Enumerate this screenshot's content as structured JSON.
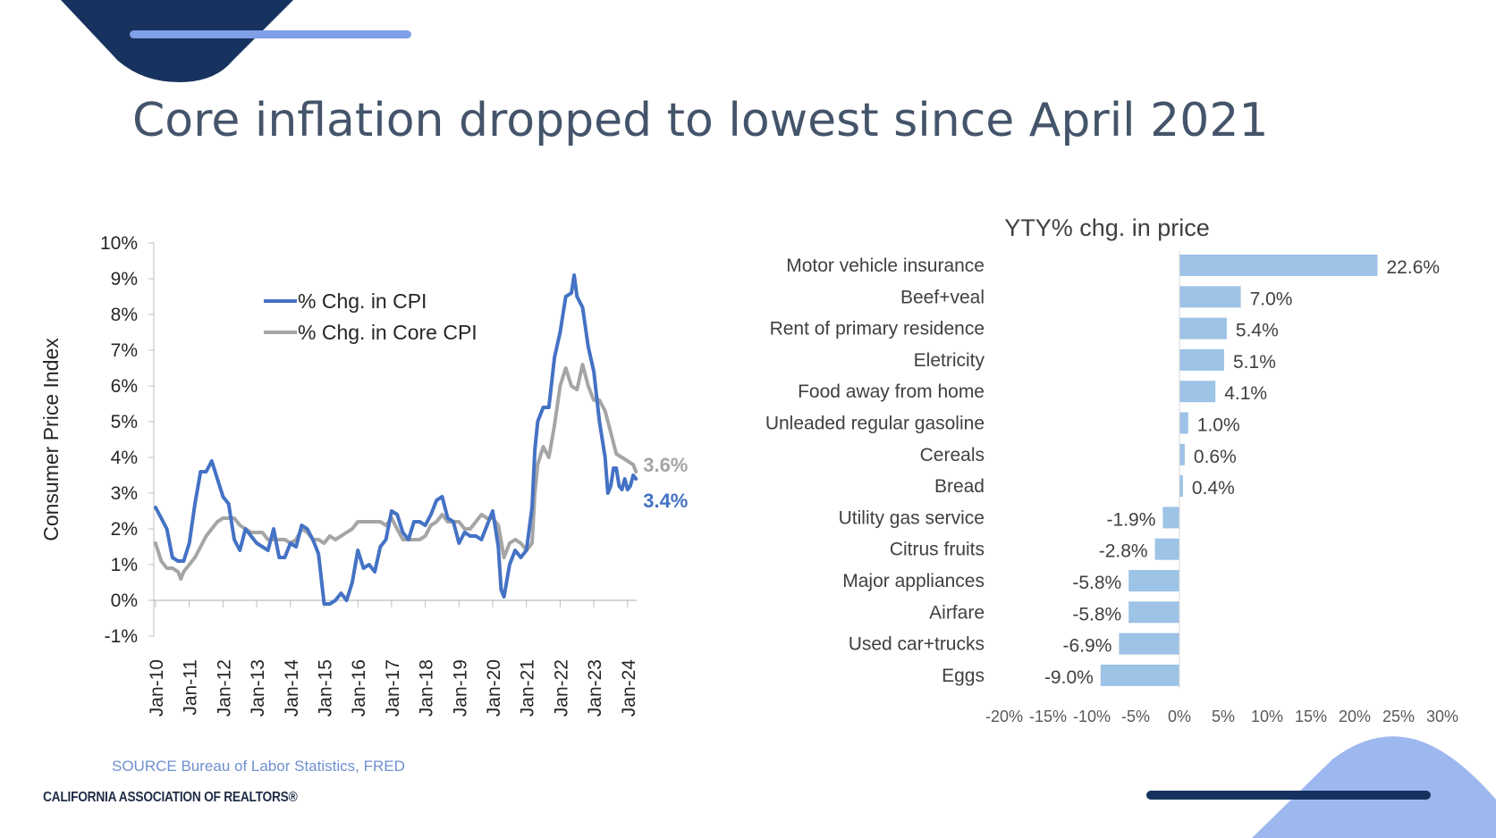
{
  "slide": {
    "title": "Core inflation dropped to lowest since April 2021",
    "source": "SOURCE Bureau of Labor Statistics, FRED",
    "organization": "CALIFORNIA ASSOCIATION OF REALTORS®"
  },
  "colors": {
    "title": "#44546a",
    "navy": "#17325e",
    "cpi_line": "#4472c4",
    "core_line": "#a5a5a5",
    "bar": "#9dc3e6",
    "light_blue_accent": "#7f9fe6",
    "source_text": "#6f8fcf"
  },
  "chart_data": [
    {
      "type": "line",
      "title": "",
      "ylabel": "Consumer Price Index",
      "xlabel": "",
      "ylim": [
        -1,
        10
      ],
      "yticks": [
        "-1%",
        "0%",
        "1%",
        "2%",
        "3%",
        "4%",
        "5%",
        "6%",
        "7%",
        "8%",
        "9%",
        "10%"
      ],
      "xticks": [
        "Jan-10",
        "Jan-11",
        "Jan-12",
        "Jan-13",
        "Jan-14",
        "Jan-15",
        "Jan-16",
        "Jan-17",
        "Jan-18",
        "Jan-19",
        "Jan-20",
        "Jan-21",
        "Jan-22",
        "Jan-23",
        "Jan-24"
      ],
      "legend_position": "top-left",
      "series": [
        {
          "name": "% Chg. in CPI",
          "color": "#4472c4",
          "end_label": "3.4%",
          "points": [
            [
              "2010-01",
              2.6
            ],
            [
              "2010-03",
              2.3
            ],
            [
              "2010-05",
              2.0
            ],
            [
              "2010-07",
              1.2
            ],
            [
              "2010-09",
              1.1
            ],
            [
              "2010-11",
              1.1
            ],
            [
              "2011-01",
              1.6
            ],
            [
              "2011-03",
              2.7
            ],
            [
              "2011-05",
              3.6
            ],
            [
              "2011-07",
              3.6
            ],
            [
              "2011-09",
              3.9
            ],
            [
              "2011-11",
              3.4
            ],
            [
              "2012-01",
              2.9
            ],
            [
              "2012-03",
              2.7
            ],
            [
              "2012-05",
              1.7
            ],
            [
              "2012-07",
              1.4
            ],
            [
              "2012-09",
              2.0
            ],
            [
              "2012-11",
              1.8
            ],
            [
              "2013-01",
              1.6
            ],
            [
              "2013-03",
              1.5
            ],
            [
              "2013-05",
              1.4
            ],
            [
              "2013-07",
              2.0
            ],
            [
              "2013-09",
              1.2
            ],
            [
              "2013-11",
              1.2
            ],
            [
              "2014-01",
              1.6
            ],
            [
              "2014-03",
              1.5
            ],
            [
              "2014-05",
              2.1
            ],
            [
              "2014-07",
              2.0
            ],
            [
              "2014-09",
              1.7
            ],
            [
              "2014-11",
              1.3
            ],
            [
              "2015-01",
              -0.1
            ],
            [
              "2015-03",
              -0.1
            ],
            [
              "2015-05",
              0.0
            ],
            [
              "2015-07",
              0.2
            ],
            [
              "2015-09",
              0.0
            ],
            [
              "2015-11",
              0.5
            ],
            [
              "2016-01",
              1.4
            ],
            [
              "2016-03",
              0.9
            ],
            [
              "2016-05",
              1.0
            ],
            [
              "2016-07",
              0.8
            ],
            [
              "2016-09",
              1.5
            ],
            [
              "2016-11",
              1.7
            ],
            [
              "2017-01",
              2.5
            ],
            [
              "2017-03",
              2.4
            ],
            [
              "2017-05",
              1.9
            ],
            [
              "2017-07",
              1.7
            ],
            [
              "2017-09",
              2.2
            ],
            [
              "2017-11",
              2.2
            ],
            [
              "2018-01",
              2.1
            ],
            [
              "2018-03",
              2.4
            ],
            [
              "2018-05",
              2.8
            ],
            [
              "2018-07",
              2.9
            ],
            [
              "2018-09",
              2.3
            ],
            [
              "2018-11",
              2.2
            ],
            [
              "2019-01",
              1.6
            ],
            [
              "2019-03",
              1.9
            ],
            [
              "2019-05",
              1.8
            ],
            [
              "2019-07",
              1.8
            ],
            [
              "2019-09",
              1.7
            ],
            [
              "2019-11",
              2.1
            ],
            [
              "2020-01",
              2.5
            ],
            [
              "2020-03",
              1.5
            ],
            [
              "2020-04",
              0.3
            ],
            [
              "2020-05",
              0.1
            ],
            [
              "2020-07",
              1.0
            ],
            [
              "2020-09",
              1.4
            ],
            [
              "2020-11",
              1.2
            ],
            [
              "2021-01",
              1.4
            ],
            [
              "2021-03",
              2.6
            ],
            [
              "2021-04",
              4.2
            ],
            [
              "2021-05",
              5.0
            ],
            [
              "2021-07",
              5.4
            ],
            [
              "2021-09",
              5.4
            ],
            [
              "2021-11",
              6.8
            ],
            [
              "2022-01",
              7.5
            ],
            [
              "2022-03",
              8.5
            ],
            [
              "2022-05",
              8.6
            ],
            [
              "2022-06",
              9.1
            ],
            [
              "2022-07",
              8.5
            ],
            [
              "2022-09",
              8.2
            ],
            [
              "2022-11",
              7.1
            ],
            [
              "2023-01",
              6.4
            ],
            [
              "2023-03",
              5.0
            ],
            [
              "2023-05",
              4.0
            ],
            [
              "2023-06",
              3.0
            ],
            [
              "2023-07",
              3.2
            ],
            [
              "2023-08",
              3.7
            ],
            [
              "2023-09",
              3.7
            ],
            [
              "2023-10",
              3.2
            ],
            [
              "2023-11",
              3.1
            ],
            [
              "2023-12",
              3.4
            ],
            [
              "2024-01",
              3.1
            ],
            [
              "2024-02",
              3.2
            ],
            [
              "2024-03",
              3.5
            ],
            [
              "2024-04",
              3.4
            ]
          ]
        },
        {
          "name": "% Chg. in Core CPI",
          "color": "#a5a5a5",
          "end_label": "3.6%",
          "points": [
            [
              "2010-01",
              1.6
            ],
            [
              "2010-03",
              1.1
            ],
            [
              "2010-05",
              0.9
            ],
            [
              "2010-07",
              0.9
            ],
            [
              "2010-09",
              0.8
            ],
            [
              "2010-10",
              0.6
            ],
            [
              "2010-11",
              0.8
            ],
            [
              "2011-01",
              1.0
            ],
            [
              "2011-03",
              1.2
            ],
            [
              "2011-05",
              1.5
            ],
            [
              "2011-07",
              1.8
            ],
            [
              "2011-09",
              2.0
            ],
            [
              "2011-11",
              2.2
            ],
            [
              "2012-01",
              2.3
            ],
            [
              "2012-03",
              2.3
            ],
            [
              "2012-05",
              2.3
            ],
            [
              "2012-07",
              2.1
            ],
            [
              "2012-09",
              2.0
            ],
            [
              "2012-11",
              1.9
            ],
            [
              "2013-01",
              1.9
            ],
            [
              "2013-03",
              1.9
            ],
            [
              "2013-05",
              1.7
            ],
            [
              "2013-07",
              1.7
            ],
            [
              "2013-09",
              1.7
            ],
            [
              "2013-11",
              1.7
            ],
            [
              "2014-01",
              1.6
            ],
            [
              "2014-03",
              1.7
            ],
            [
              "2014-05",
              2.0
            ],
            [
              "2014-07",
              1.9
            ],
            [
              "2014-09",
              1.7
            ],
            [
              "2014-11",
              1.7
            ],
            [
              "2015-01",
              1.6
            ],
            [
              "2015-03",
              1.8
            ],
            [
              "2015-05",
              1.7
            ],
            [
              "2015-07",
              1.8
            ],
            [
              "2015-09",
              1.9
            ],
            [
              "2015-11",
              2.0
            ],
            [
              "2016-01",
              2.2
            ],
            [
              "2016-03",
              2.2
            ],
            [
              "2016-05",
              2.2
            ],
            [
              "2016-07",
              2.2
            ],
            [
              "2016-09",
              2.2
            ],
            [
              "2016-11",
              2.1
            ],
            [
              "2017-01",
              2.3
            ],
            [
              "2017-03",
              2.0
            ],
            [
              "2017-05",
              1.7
            ],
            [
              "2017-07",
              1.7
            ],
            [
              "2017-09",
              1.7
            ],
            [
              "2017-11",
              1.7
            ],
            [
              "2018-01",
              1.8
            ],
            [
              "2018-03",
              2.1
            ],
            [
              "2018-05",
              2.2
            ],
            [
              "2018-07",
              2.4
            ],
            [
              "2018-09",
              2.2
            ],
            [
              "2018-11",
              2.2
            ],
            [
              "2019-01",
              2.2
            ],
            [
              "2019-03",
              2.0
            ],
            [
              "2019-05",
              2.0
            ],
            [
              "2019-07",
              2.2
            ],
            [
              "2019-09",
              2.4
            ],
            [
              "2019-11",
              2.3
            ],
            [
              "2020-01",
              2.3
            ],
            [
              "2020-03",
              2.1
            ],
            [
              "2020-05",
              1.2
            ],
            [
              "2020-07",
              1.6
            ],
            [
              "2020-09",
              1.7
            ],
            [
              "2020-11",
              1.6
            ],
            [
              "2021-01",
              1.4
            ],
            [
              "2021-03",
              1.6
            ],
            [
              "2021-04",
              3.0
            ],
            [
              "2021-05",
              3.8
            ],
            [
              "2021-07",
              4.3
            ],
            [
              "2021-09",
              4.0
            ],
            [
              "2021-11",
              4.9
            ],
            [
              "2022-01",
              6.0
            ],
            [
              "2022-03",
              6.5
            ],
            [
              "2022-05",
              6.0
            ],
            [
              "2022-07",
              5.9
            ],
            [
              "2022-09",
              6.6
            ],
            [
              "2022-11",
              6.0
            ],
            [
              "2023-01",
              5.6
            ],
            [
              "2023-03",
              5.6
            ],
            [
              "2023-05",
              5.3
            ],
            [
              "2023-07",
              4.7
            ],
            [
              "2023-09",
              4.1
            ],
            [
              "2023-11",
              4.0
            ],
            [
              "2024-01",
              3.9
            ],
            [
              "2024-03",
              3.8
            ],
            [
              "2024-04",
              3.6
            ]
          ]
        }
      ]
    },
    {
      "type": "bar",
      "orientation": "horizontal",
      "title": "YTY% chg. in price",
      "xlim": [
        -20,
        30
      ],
      "xticks": [
        "-20%",
        "-15%",
        "-10%",
        "-5%",
        "0%",
        "5%",
        "10%",
        "15%",
        "20%",
        "25%",
        "30%"
      ],
      "categories": [
        "Motor vehicle insurance",
        "Beef+veal",
        "Rent of primary residence",
        "Eletricity",
        "Food away from home",
        "Unleaded regular gasoline",
        "Cereals",
        "Bread",
        "Utility gas service",
        "Citrus fruits",
        "Major appliances",
        "Airfare",
        "Used car+trucks",
        "Eggs"
      ],
      "values": [
        22.6,
        7.0,
        5.4,
        5.1,
        4.1,
        1.0,
        0.6,
        0.4,
        -1.9,
        -2.8,
        -5.8,
        -5.8,
        -6.9,
        -9.0
      ],
      "labels": [
        "22.6%",
        "7.0%",
        "5.4%",
        "5.1%",
        "4.1%",
        "1.0%",
        "0.6%",
        "0.4%",
        "-1.9%",
        "-2.8%",
        "-5.8%",
        "-5.8%",
        "-6.9%",
        "-9.0%"
      ]
    }
  ]
}
